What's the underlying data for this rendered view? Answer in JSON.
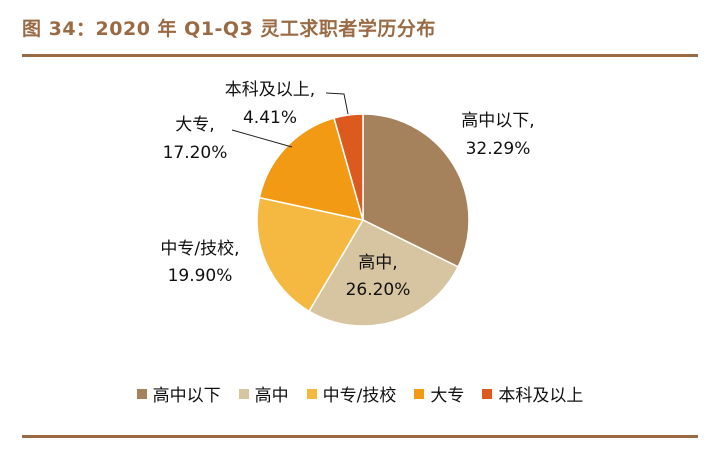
{
  "figure_title": "图 34：2020 年 Q1-Q3 灵工求职者学历分布",
  "chart_data": {
    "type": "pie",
    "title": "图 34：2020 年 Q1-Q3 灵工求职者学历分布",
    "categories": [
      "高中以下",
      "高中",
      "中专/技校",
      "大专",
      "本科及以上"
    ],
    "values": [
      32.29,
      26.2,
      19.9,
      17.2,
      4.41
    ],
    "value_labels": [
      "32.29%",
      "26.20%",
      "19.90%",
      "17.20%",
      "4.41%"
    ],
    "slice_labels": [
      "高中以下,",
      "高中,",
      "中专/技校,",
      "大专,",
      "本科及以上,"
    ],
    "colors": [
      "#a5825c",
      "#d7c4a0",
      "#f5b941",
      "#f29a14",
      "#dd5a1f"
    ],
    "legend_position": "bottom",
    "start_angle": "12 o'clock",
    "direction": "clockwise"
  }
}
